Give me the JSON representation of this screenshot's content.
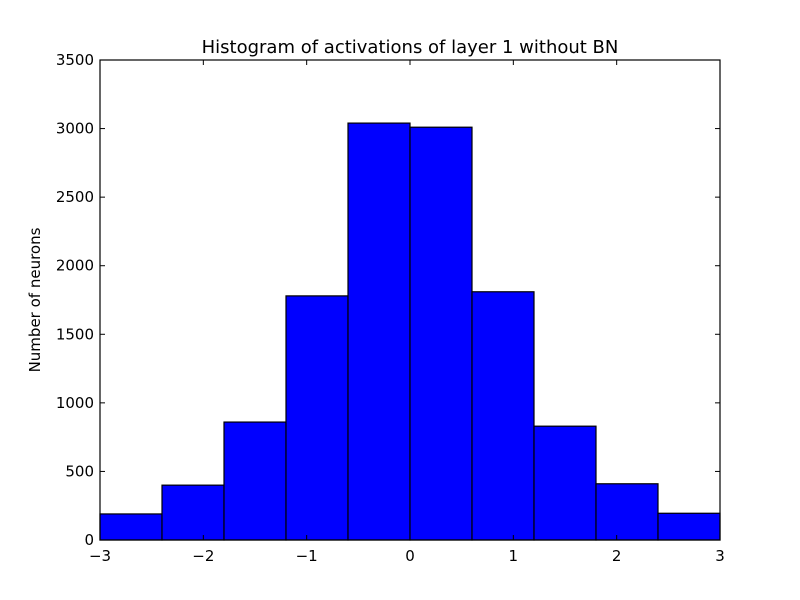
{
  "chart_data": {
    "type": "bar",
    "title": "Histogram of activations of layer 1  without BN",
    "xlabel": "",
    "ylabel": "Number of neurons",
    "xlim": [
      -3,
      3
    ],
    "ylim": [
      0,
      3500
    ],
    "bin_edges": [
      -3.0,
      -2.4,
      -1.8,
      -1.2,
      -0.6,
      0.0,
      0.6,
      1.2,
      1.8,
      2.4,
      3.0
    ],
    "values": [
      190,
      400,
      860,
      1780,
      3040,
      3010,
      1810,
      830,
      410,
      195
    ],
    "x_ticks": [
      -3,
      -2,
      -1,
      0,
      1,
      2,
      3
    ],
    "x_tick_labels": [
      "−3",
      "−2",
      "−1",
      "0",
      "1",
      "2",
      "3"
    ],
    "y_ticks": [
      0,
      500,
      1000,
      1500,
      2000,
      2500,
      3000,
      3500
    ],
    "y_tick_labels": [
      "0",
      "500",
      "1000",
      "1500",
      "2000",
      "2500",
      "3000",
      "3500"
    ],
    "bar_color": "#0000ff",
    "edge_color": "#000000",
    "grid": false,
    "legend": "none"
  }
}
